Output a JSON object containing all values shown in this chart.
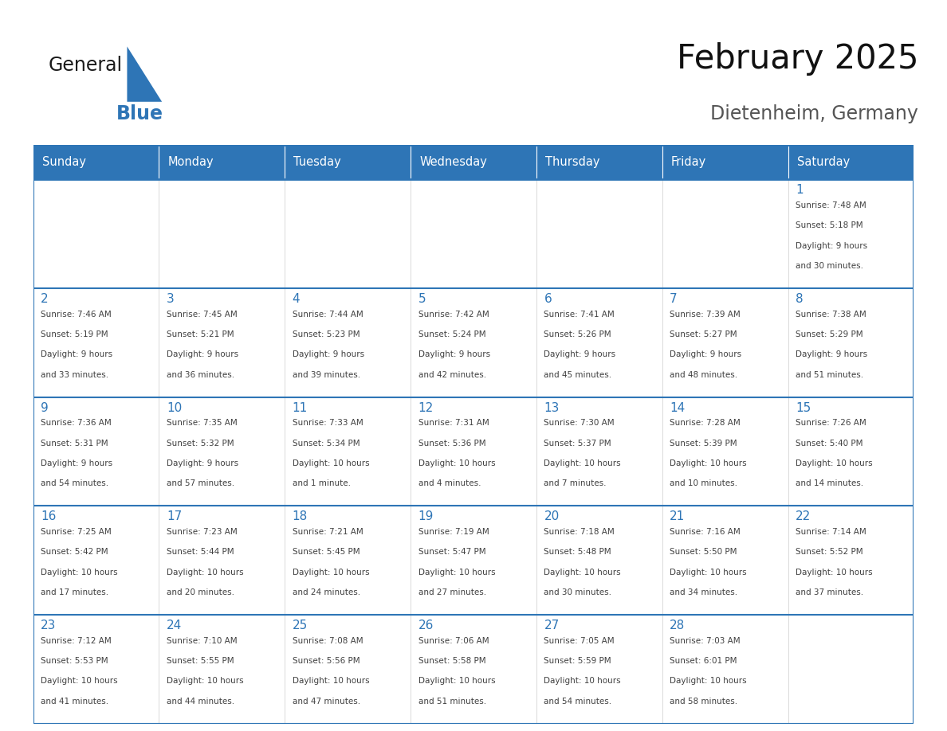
{
  "title": "February 2025",
  "subtitle": "Dietenheim, Germany",
  "header_bg_color": "#2E75B6",
  "header_text_color": "#FFFFFF",
  "cell_bg_color": "#FFFFFF",
  "day_number_color": "#2E75B6",
  "text_color": "#404040",
  "border_color": "#2E75B6",
  "grid_line_color": "#2E75B6",
  "days_of_week": [
    "Sunday",
    "Monday",
    "Tuesday",
    "Wednesday",
    "Thursday",
    "Friday",
    "Saturday"
  ],
  "logo_text1": "General",
  "logo_text2": "Blue",
  "logo_color1": "#1a1a1a",
  "logo_color2": "#2E75B6",
  "calendar_data": [
    [
      null,
      null,
      null,
      null,
      null,
      null,
      {
        "day": "1",
        "sunrise": "7:48 AM",
        "sunset": "5:18 PM",
        "daylight_line1": "9 hours",
        "daylight_line2": "and 30 minutes."
      }
    ],
    [
      {
        "day": "2",
        "sunrise": "7:46 AM",
        "sunset": "5:19 PM",
        "daylight_line1": "9 hours",
        "daylight_line2": "and 33 minutes."
      },
      {
        "day": "3",
        "sunrise": "7:45 AM",
        "sunset": "5:21 PM",
        "daylight_line1": "9 hours",
        "daylight_line2": "and 36 minutes."
      },
      {
        "day": "4",
        "sunrise": "7:44 AM",
        "sunset": "5:23 PM",
        "daylight_line1": "9 hours",
        "daylight_line2": "and 39 minutes."
      },
      {
        "day": "5",
        "sunrise": "7:42 AM",
        "sunset": "5:24 PM",
        "daylight_line1": "9 hours",
        "daylight_line2": "and 42 minutes."
      },
      {
        "day": "6",
        "sunrise": "7:41 AM",
        "sunset": "5:26 PM",
        "daylight_line1": "9 hours",
        "daylight_line2": "and 45 minutes."
      },
      {
        "day": "7",
        "sunrise": "7:39 AM",
        "sunset": "5:27 PM",
        "daylight_line1": "9 hours",
        "daylight_line2": "and 48 minutes."
      },
      {
        "day": "8",
        "sunrise": "7:38 AM",
        "sunset": "5:29 PM",
        "daylight_line1": "9 hours",
        "daylight_line2": "and 51 minutes."
      }
    ],
    [
      {
        "day": "9",
        "sunrise": "7:36 AM",
        "sunset": "5:31 PM",
        "daylight_line1": "9 hours",
        "daylight_line2": "and 54 minutes."
      },
      {
        "day": "10",
        "sunrise": "7:35 AM",
        "sunset": "5:32 PM",
        "daylight_line1": "9 hours",
        "daylight_line2": "and 57 minutes."
      },
      {
        "day": "11",
        "sunrise": "7:33 AM",
        "sunset": "5:34 PM",
        "daylight_line1": "10 hours",
        "daylight_line2": "and 1 minute."
      },
      {
        "day": "12",
        "sunrise": "7:31 AM",
        "sunset": "5:36 PM",
        "daylight_line1": "10 hours",
        "daylight_line2": "and 4 minutes."
      },
      {
        "day": "13",
        "sunrise": "7:30 AM",
        "sunset": "5:37 PM",
        "daylight_line1": "10 hours",
        "daylight_line2": "and 7 minutes."
      },
      {
        "day": "14",
        "sunrise": "7:28 AM",
        "sunset": "5:39 PM",
        "daylight_line1": "10 hours",
        "daylight_line2": "and 10 minutes."
      },
      {
        "day": "15",
        "sunrise": "7:26 AM",
        "sunset": "5:40 PM",
        "daylight_line1": "10 hours",
        "daylight_line2": "and 14 minutes."
      }
    ],
    [
      {
        "day": "16",
        "sunrise": "7:25 AM",
        "sunset": "5:42 PM",
        "daylight_line1": "10 hours",
        "daylight_line2": "and 17 minutes."
      },
      {
        "day": "17",
        "sunrise": "7:23 AM",
        "sunset": "5:44 PM",
        "daylight_line1": "10 hours",
        "daylight_line2": "and 20 minutes."
      },
      {
        "day": "18",
        "sunrise": "7:21 AM",
        "sunset": "5:45 PM",
        "daylight_line1": "10 hours",
        "daylight_line2": "and 24 minutes."
      },
      {
        "day": "19",
        "sunrise": "7:19 AM",
        "sunset": "5:47 PM",
        "daylight_line1": "10 hours",
        "daylight_line2": "and 27 minutes."
      },
      {
        "day": "20",
        "sunrise": "7:18 AM",
        "sunset": "5:48 PM",
        "daylight_line1": "10 hours",
        "daylight_line2": "and 30 minutes."
      },
      {
        "day": "21",
        "sunrise": "7:16 AM",
        "sunset": "5:50 PM",
        "daylight_line1": "10 hours",
        "daylight_line2": "and 34 minutes."
      },
      {
        "day": "22",
        "sunrise": "7:14 AM",
        "sunset": "5:52 PM",
        "daylight_line1": "10 hours",
        "daylight_line2": "and 37 minutes."
      }
    ],
    [
      {
        "day": "23",
        "sunrise": "7:12 AM",
        "sunset": "5:53 PM",
        "daylight_line1": "10 hours",
        "daylight_line2": "and 41 minutes."
      },
      {
        "day": "24",
        "sunrise": "7:10 AM",
        "sunset": "5:55 PM",
        "daylight_line1": "10 hours",
        "daylight_line2": "and 44 minutes."
      },
      {
        "day": "25",
        "sunrise": "7:08 AM",
        "sunset": "5:56 PM",
        "daylight_line1": "10 hours",
        "daylight_line2": "and 47 minutes."
      },
      {
        "day": "26",
        "sunrise": "7:06 AM",
        "sunset": "5:58 PM",
        "daylight_line1": "10 hours",
        "daylight_line2": "and 51 minutes."
      },
      {
        "day": "27",
        "sunrise": "7:05 AM",
        "sunset": "5:59 PM",
        "daylight_line1": "10 hours",
        "daylight_line2": "and 54 minutes."
      },
      {
        "day": "28",
        "sunrise": "7:03 AM",
        "sunset": "6:01 PM",
        "daylight_line1": "10 hours",
        "daylight_line2": "and 58 minutes."
      },
      null
    ]
  ]
}
